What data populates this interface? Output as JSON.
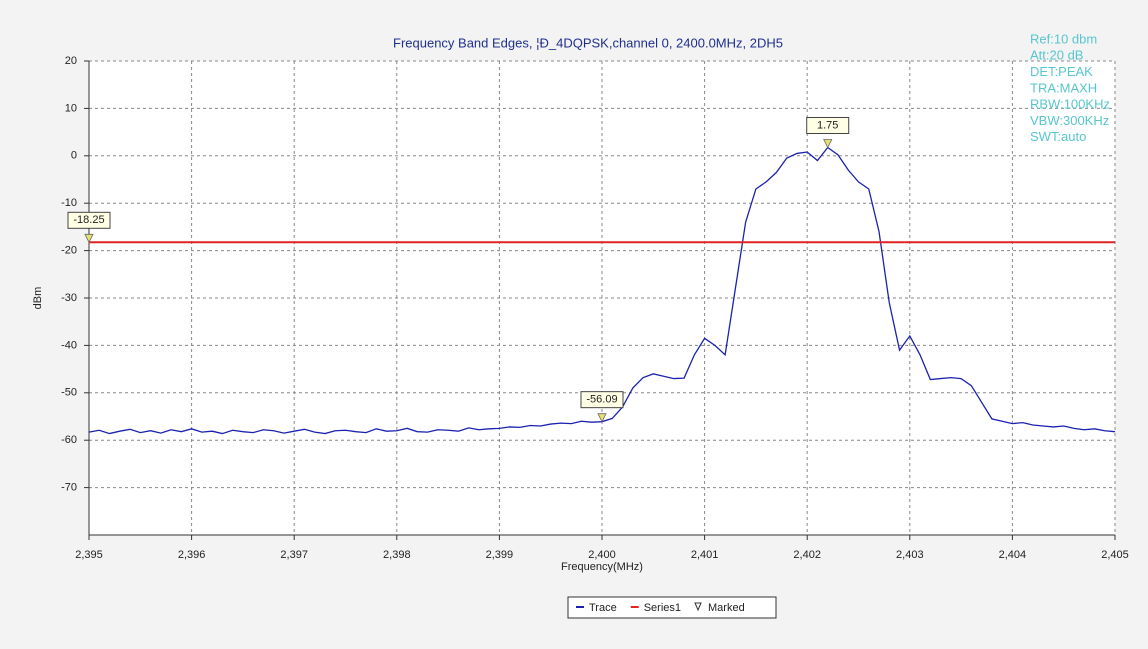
{
  "chart_data": {
    "type": "line",
    "title": "Frequency Band Edges, ¦Ð_4DQPSK,channel 0, 2400.0MHz, 2DH5",
    "x_label": "Frequency(MHz)",
    "y_label": "dBm",
    "annotations": [
      "Ref:10 dbm",
      "Att:20 dB",
      "DET:PEAK",
      "TRA:MAXH",
      "RBW:100KHz",
      "VBW:300KHz",
      "SWT:auto"
    ],
    "xlim": [
      2395,
      2405
    ],
    "ylim": [
      -80,
      20
    ],
    "xticks": [
      {
        "value": 2395,
        "label": "2,395"
      },
      {
        "value": 2396,
        "label": "2,396"
      },
      {
        "value": 2397,
        "label": "2,397"
      },
      {
        "value": 2398,
        "label": "2,398"
      },
      {
        "value": 2399,
        "label": "2,399"
      },
      {
        "value": 2400,
        "label": "2,400"
      },
      {
        "value": 2401,
        "label": "2,401"
      },
      {
        "value": 2402,
        "label": "2,402"
      },
      {
        "value": 2403,
        "label": "2,403"
      },
      {
        "value": 2404,
        "label": "2,404"
      },
      {
        "value": 2405,
        "label": "2,405"
      }
    ],
    "yticks": [
      -70,
      -60,
      -50,
      -40,
      -30,
      -20,
      -10,
      0,
      10,
      20
    ],
    "grid": true,
    "series": [
      {
        "name": "Trace",
        "color": "#1c22b0",
        "style": "line",
        "x": [
          2395,
          2395.1,
          2395.2,
          2395.3,
          2395.4,
          2395.5,
          2395.6,
          2395.7,
          2395.8,
          2395.9,
          2396,
          2396.1,
          2396.2,
          2396.3,
          2396.4,
          2396.5,
          2396.6,
          2396.7,
          2396.8,
          2396.9,
          2397,
          2397.1,
          2397.2,
          2397.3,
          2397.4,
          2397.5,
          2397.6,
          2397.7,
          2397.8,
          2397.9,
          2398,
          2398.1,
          2398.2,
          2398.3,
          2398.4,
          2398.5,
          2398.6,
          2398.7,
          2398.8,
          2398.9,
          2399,
          2399.1,
          2399.2,
          2399.3,
          2399.4,
          2399.5,
          2399.6,
          2399.7,
          2399.8,
          2399.9,
          2400,
          2400.1,
          2400.2,
          2400.3,
          2400.4,
          2400.5,
          2400.6,
          2400.7,
          2400.8,
          2400.9,
          2401,
          2401.1,
          2401.2,
          2401.3,
          2401.4,
          2401.5,
          2401.6,
          2401.7,
          2401.8,
          2401.9,
          2402,
          2402.1,
          2402.2,
          2402.3,
          2402.4,
          2402.5,
          2402.6,
          2402.7,
          2402.8,
          2402.9,
          2403,
          2403.1,
          2403.2,
          2403.3,
          2403.4,
          2403.5,
          2403.6,
          2403.7,
          2403.8,
          2403.9,
          2404,
          2404.1,
          2404.2,
          2404.3,
          2404.4,
          2404.5,
          2404.6,
          2404.7,
          2404.8,
          2404.9,
          2405
        ],
        "values": [
          -58.3,
          -57.9,
          -58.6,
          -58.1,
          -57.7,
          -58.4,
          -58.0,
          -58.5,
          -57.8,
          -58.2,
          -57.6,
          -58.3,
          -58.1,
          -58.6,
          -57.9,
          -58.2,
          -58.4,
          -57.8,
          -58.0,
          -58.5,
          -58.1,
          -57.7,
          -58.3,
          -58.6,
          -58.0,
          -57.9,
          -58.2,
          -58.4,
          -57.6,
          -58.1,
          -58.0,
          -57.5,
          -58.2,
          -58.3,
          -57.8,
          -57.9,
          -58.1,
          -57.4,
          -57.8,
          -57.6,
          -57.5,
          -57.2,
          -57.3,
          -56.9,
          -57.0,
          -56.6,
          -56.4,
          -56.5,
          -56.0,
          -56.2,
          -56.09,
          -55.4,
          -53.0,
          -49.0,
          -46.8,
          -46.0,
          -46.5,
          -47.0,
          -46.9,
          -42.0,
          -38.5,
          -40.0,
          -42.0,
          -28.0,
          -14.0,
          -7.0,
          -5.5,
          -3.5,
          -0.5,
          0.5,
          0.8,
          -1.0,
          1.75,
          0.2,
          -3.0,
          -5.5,
          -7.0,
          -16.0,
          -31.0,
          -41.0,
          -38.0,
          -42.0,
          -47.2,
          -47.0,
          -46.8,
          -47.0,
          -48.5,
          -52.0,
          -55.5,
          -56.0,
          -56.5,
          -56.3,
          -56.8,
          -57.0,
          -57.2,
          -57.0,
          -57.5,
          -57.8,
          -57.6,
          -58.0,
          -58.2
        ]
      },
      {
        "name": "Series1",
        "color": "#e02424",
        "style": "line",
        "x": [
          2395,
          2405
        ],
        "values": [
          -18.25,
          -18.25
        ]
      },
      {
        "name": "Marked",
        "color": "#e8e070",
        "style": "marker",
        "x": [
          2395,
          2400,
          2402.2
        ],
        "values": [
          -18.25,
          -56.09,
          1.75
        ]
      }
    ]
  }
}
